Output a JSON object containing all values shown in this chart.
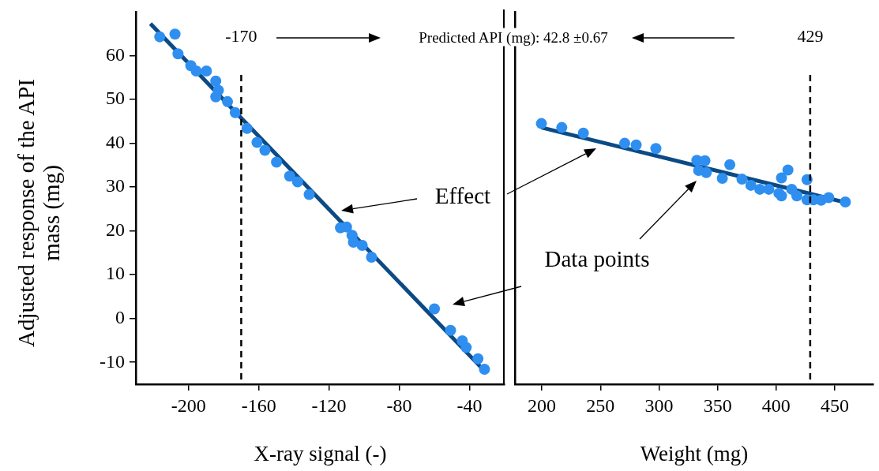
{
  "chart_data": [
    {
      "type": "scatter",
      "xlabel": "X-ray signal (-)",
      "ylabel": "Adjusted response of the API mass (mg)",
      "xlim": [
        -230,
        -20
      ],
      "xticks": [
        -200,
        -160,
        -120,
        -80,
        -40
      ],
      "ylim": [
        -15,
        70
      ],
      "yticks": [
        -10,
        0,
        10,
        20,
        30,
        40,
        50,
        60
      ],
      "grid": false,
      "legend": false,
      "marker": "circle",
      "series": [
        {
          "color": "#2f8ff0",
          "x": [
            -216.4,
            -207.7,
            -206,
            -198.7,
            -195.6,
            -189.8,
            -184.5,
            -183,
            -184.5,
            -177.8,
            -173.4,
            -166.7,
            -161,
            -156.5,
            -149.9,
            -142.4,
            -137.9,
            -131.3,
            -113.5,
            -110,
            -106.9,
            -106.1,
            -101.1,
            -95.8,
            -60,
            -50.8,
            -44.1,
            -41.9,
            -35.2,
            -31.5
          ],
          "values": [
            64.3,
            64.9,
            60.4,
            57.7,
            56.5,
            56.5,
            54.2,
            52.1,
            50.6,
            49.5,
            47,
            43.4,
            40.2,
            38.4,
            35.7,
            32.5,
            31.2,
            28.3,
            20.7,
            20.9,
            19,
            17.4,
            16.7,
            14,
            2.2,
            -2.7,
            -5.1,
            -6.6,
            -9.2,
            -11.6
          ]
        },
        {
          "type": "line",
          "marker": "none",
          "color": "#0b4a85",
          "x": [
            -221.7,
            -30.2
          ],
          "values": [
            67.3,
            -12.5
          ]
        }
      ],
      "ref_lines": [
        {
          "axis": "x",
          "value": -170,
          "label": "-170",
          "line_style": "dashed",
          "color": "#000000"
        }
      ],
      "annotations": [
        "Predicted API (mg): 42.8 ±0.67",
        "Effect",
        "Data points"
      ]
    },
    {
      "type": "scatter",
      "xlabel": "Weight (mg)",
      "xlim": [
        177,
        483
      ],
      "xticks": [
        200,
        250,
        300,
        350,
        400,
        450
      ],
      "ylim": [
        -15,
        70
      ],
      "tick_labels": "x",
      "grid": false,
      "legend": false,
      "marker": "circle",
      "series": [
        {
          "color": "#2f8ff0",
          "x": [
            199.6,
            217,
            235.4,
            270.7,
            280.5,
            297.3,
            332.3,
            339.2,
            333.8,
            340.3,
            360.4,
            354,
            370.8,
            378.4,
            386,
            393.7,
            402.3,
            404.5,
            404.5,
            410,
            413.2,
            417.6,
            426.3,
            426.3,
            431.7,
            438.3,
            444.8,
            459
          ],
          "values": [
            44.5,
            43.6,
            42.3,
            40,
            39.6,
            38.8,
            36.1,
            36,
            33.8,
            33.3,
            35.1,
            32,
            31.8,
            30.4,
            29.5,
            29.5,
            28.6,
            32.1,
            28,
            33.9,
            29.5,
            28,
            31.7,
            27.1,
            27.1,
            27,
            27.6,
            26.6
          ]
        },
        {
          "type": "line",
          "marker": "none",
          "color": "#0b4a85",
          "x": [
            199.6,
            459
          ],
          "values": [
            43.6,
            26.5
          ]
        }
      ],
      "ref_lines": [
        {
          "axis": "x",
          "value": 429,
          "label": "429",
          "line_style": "dashed",
          "color": "#000000"
        }
      ]
    }
  ]
}
